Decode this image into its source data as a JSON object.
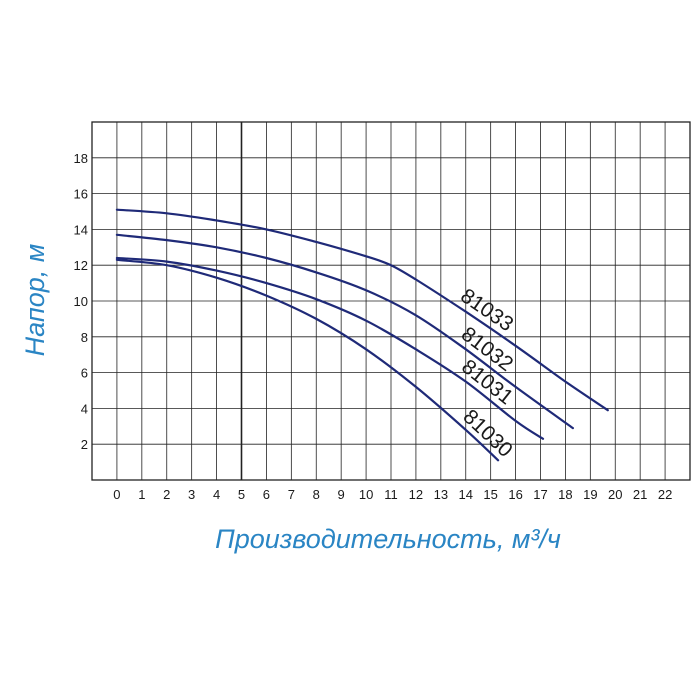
{
  "chart_data": {
    "type": "line",
    "title": "",
    "xlabel": "Производительность, м³/ч",
    "ylabel": "Напор, м",
    "xlim": [
      -1,
      23
    ],
    "ylim": [
      0,
      20
    ],
    "x_ticks": [
      0,
      1,
      2,
      3,
      4,
      5,
      6,
      7,
      8,
      9,
      10,
      11,
      12,
      13,
      14,
      15,
      16,
      17,
      18,
      19,
      20,
      21,
      22
    ],
    "y_ticks": [
      2,
      4,
      6,
      8,
      10,
      12,
      14,
      16,
      18
    ],
    "highlight_x": 5,
    "grid": true,
    "colors": {
      "line": "#1f2a78",
      "axis_title": "#2a85c4",
      "grid": "#222222"
    },
    "series": [
      {
        "name": "81033",
        "x": [
          0,
          2,
          4,
          6,
          8,
          10,
          11,
          12,
          14,
          16,
          18,
          19.7
        ],
        "y": [
          15.1,
          14.9,
          14.5,
          14.0,
          13.3,
          12.5,
          12.0,
          11.2,
          9.4,
          7.5,
          5.5,
          3.9
        ]
      },
      {
        "name": "81032",
        "x": [
          0,
          2,
          4,
          6,
          8,
          10,
          12,
          14,
          16,
          18.3
        ],
        "y": [
          13.7,
          13.4,
          13.0,
          12.4,
          11.6,
          10.6,
          9.2,
          7.3,
          5.2,
          2.9
        ]
      },
      {
        "name": "81031",
        "x": [
          0,
          2,
          4,
          6,
          8,
          10,
          12,
          14,
          16,
          17.1
        ],
        "y": [
          12.4,
          12.2,
          11.7,
          11.0,
          10.1,
          8.9,
          7.3,
          5.5,
          3.3,
          2.3
        ]
      },
      {
        "name": "81030",
        "x": [
          0,
          2,
          4,
          6,
          8,
          10,
          12,
          14,
          15.3
        ],
        "y": [
          12.3,
          12.0,
          11.3,
          10.3,
          9.0,
          7.3,
          5.2,
          2.8,
          1.1
        ]
      }
    ]
  }
}
